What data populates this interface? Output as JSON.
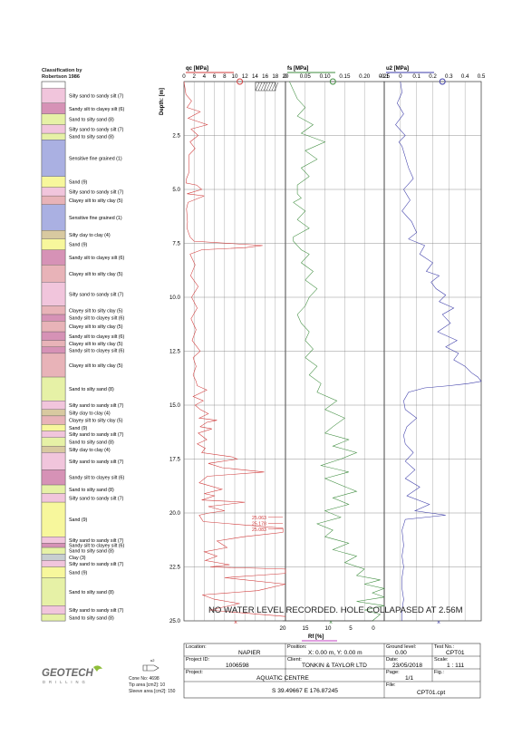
{
  "classification": {
    "title": "Classification by\nRobertson 1986",
    "depth_range": [
      0,
      25
    ],
    "layers": [
      {
        "top": 0.3,
        "bottom": 1.0,
        "label": "Silty sand to sandy silt (7)",
        "color": "#f1c5dc"
      },
      {
        "top": 1.0,
        "bottom": 1.5,
        "label": "Sandy silt to clayey silt (6)",
        "color": "#d692b6"
      },
      {
        "top": 1.5,
        "bottom": 2.0,
        "label": "Sand to silty sand (8)",
        "color": "#e6f1a6"
      },
      {
        "top": 2.0,
        "bottom": 2.4,
        "label": "Silty sand to sandy silt (7)",
        "color": "#f1c5dc"
      },
      {
        "top": 2.4,
        "bottom": 2.7,
        "label": "Sand to silty sand (8)",
        "color": "#e6f1a6"
      },
      {
        "top": 2.7,
        "bottom": 4.4,
        "label": "Sensitive fine grained (1)",
        "color": "#aab0e2"
      },
      {
        "top": 4.4,
        "bottom": 4.9,
        "label": "Sand (9)",
        "color": "#f7f79c"
      },
      {
        "top": 4.9,
        "bottom": 5.3,
        "label": "Silty sand to sandy silt (7)",
        "color": "#f1c5dc"
      },
      {
        "top": 5.3,
        "bottom": 5.7,
        "label": "Clayey silt to silty clay (5)",
        "color": "#e8b3b8"
      },
      {
        "top": 5.7,
        "bottom": 6.9,
        "label": "Sensitive fine grained (1)",
        "color": "#aab0e2"
      },
      {
        "top": 6.9,
        "bottom": 7.3,
        "label": "Silty clay to clay (4)",
        "color": "#d8c9a0"
      },
      {
        "top": 7.3,
        "bottom": 7.8,
        "label": "Sand (9)",
        "color": "#f7f79c"
      },
      {
        "top": 7.8,
        "bottom": 8.5,
        "label": "Sandy silt to clayey silt (6)",
        "color": "#d692b6"
      },
      {
        "top": 8.5,
        "bottom": 9.3,
        "label": "Clayey silt to silty clay (5)",
        "color": "#e8b3b8"
      },
      {
        "top": 9.3,
        "bottom": 10.4,
        "label": "Silty sand to sandy silt (7)",
        "color": "#f1c5dc"
      },
      {
        "top": 10.4,
        "bottom": 10.8,
        "label": "Clayey silt to silty clay (5)",
        "color": "#e8b3b8"
      },
      {
        "top": 10.8,
        "bottom": 11.1,
        "label": "Sandy silt to clayey silt (6)",
        "color": "#d692b6"
      },
      {
        "top": 11.1,
        "bottom": 11.6,
        "label": "Clayey silt to silty clay (5)",
        "color": "#e8b3b8"
      },
      {
        "top": 11.6,
        "bottom": 12.0,
        "label": "Sandy silt to clayey silt (6)",
        "color": "#d692b6"
      },
      {
        "top": 12.0,
        "bottom": 12.3,
        "label": "Clayey silt to silty clay (5)",
        "color": "#e8b3b8"
      },
      {
        "top": 12.3,
        "bottom": 12.6,
        "label": "Sandy silt to clayey silt (6)",
        "color": "#d692b6"
      },
      {
        "top": 12.6,
        "bottom": 13.7,
        "label": "Clayey silt to silty clay (5)",
        "color": "#e8b3b8"
      },
      {
        "top": 13.7,
        "bottom": 14.8,
        "label": "Sand to silty sand (8)",
        "color": "#e6f1a6"
      },
      {
        "top": 14.8,
        "bottom": 15.2,
        "label": "Silty sand to sandy silt (7)",
        "color": "#f1c5dc"
      },
      {
        "top": 15.2,
        "bottom": 15.5,
        "label": "Silty clay to clay (4)",
        "color": "#d8c9a0"
      },
      {
        "top": 15.5,
        "bottom": 15.9,
        "label": "Clayey silt to silty clay (5)",
        "color": "#e8b3b8"
      },
      {
        "top": 15.9,
        "bottom": 16.2,
        "label": "Sand (9)",
        "color": "#f7f79c"
      },
      {
        "top": 16.2,
        "bottom": 16.5,
        "label": "Silty sand to sandy silt (7)",
        "color": "#f1c5dc"
      },
      {
        "top": 16.5,
        "bottom": 16.9,
        "label": "Sand to silty sand (8)",
        "color": "#e6f1a6"
      },
      {
        "top": 16.9,
        "bottom": 17.2,
        "label": "Silty clay to clay (4)",
        "color": "#d8c9a0"
      },
      {
        "top": 17.2,
        "bottom": 18.0,
        "label": "Silty sand to sandy silt (7)",
        "color": "#f1c5dc"
      },
      {
        "top": 18.0,
        "bottom": 18.7,
        "label": "Sandy silt to clayey silt (6)",
        "color": "#d692b6"
      },
      {
        "top": 18.7,
        "bottom": 19.1,
        "label": "Sand to silty sand (8)",
        "color": "#e6f1a6"
      },
      {
        "top": 19.1,
        "bottom": 19.5,
        "label": "Silty sand to sandy silt (7)",
        "color": "#f1c5dc"
      },
      {
        "top": 19.5,
        "bottom": 21.1,
        "label": "Sand (9)",
        "color": "#f7f79c"
      },
      {
        "top": 21.1,
        "bottom": 21.4,
        "label": "Silty sand to sandy silt (7)",
        "color": "#f1c5dc"
      },
      {
        "top": 21.4,
        "bottom": 21.6,
        "label": "Sandy silt to clayey silt (6)",
        "color": "#d692b6"
      },
      {
        "top": 21.6,
        "bottom": 21.9,
        "label": "Sand to silty sand (8)",
        "color": "#e6f1a6"
      },
      {
        "top": 21.9,
        "bottom": 22.2,
        "label": "Clay (3)",
        "color": "#c7ced1"
      },
      {
        "top": 22.2,
        "bottom": 22.5,
        "label": "Silty sand to sandy silt (7)",
        "color": "#f1c5dc"
      },
      {
        "top": 22.5,
        "bottom": 23.0,
        "label": "Sand (9)",
        "color": "#f7f79c"
      },
      {
        "top": 23.0,
        "bottom": 24.3,
        "label": "Sand to silty sand (8)",
        "color": "#e6f1a6"
      },
      {
        "top": 24.3,
        "bottom": 24.7,
        "label": "Silty sand to sandy silt (7)",
        "color": "#f1c5dc"
      },
      {
        "top": 24.7,
        "bottom": 25.0,
        "label": "Sand to silty sand (8)",
        "color": "#e6f1a6"
      }
    ]
  },
  "chart_data": [
    {
      "type": "line",
      "xlabel": "qc [MPa]",
      "ylabel": "Depth: [m]",
      "xlim": [
        0,
        20
      ],
      "ylim": [
        25,
        0
      ],
      "xticks": [
        "0",
        "2",
        "4",
        "6",
        "8",
        "10",
        "12",
        "14",
        "16",
        "18",
        "20"
      ],
      "yticks": [
        "2.5",
        "5.0",
        "7.5",
        "10.0",
        "12.5",
        "15.0",
        "17.5",
        "20.0",
        "22.5",
        "25.0"
      ],
      "color": "#d23a3a",
      "off_scale_labels": [
        "25.063",
        "25.178",
        "25.083"
      ],
      "series": [
        {
          "x": [
            0,
            0.2,
            0.4,
            1.5,
            0.6,
            3.2,
            0.8,
            4.6,
            1.4,
            2.8,
            1.2,
            2.2,
            1.0,
            1.0,
            0.5,
            0.4,
            2.5,
            3.5,
            0.6,
            4.0,
            0.8,
            0.5,
            0.7,
            0.6,
            0.9,
            1.2,
            2.0,
            15.5,
            12.0,
            3.5,
            1.2,
            2.2,
            1.3,
            2.8,
            1.5,
            2.6,
            1.4,
            2.4,
            1.6,
            3.2,
            1.8,
            2.4,
            1.8,
            2.4,
            2.6,
            4.5,
            1.8,
            3.8,
            2.2,
            3.2,
            4.8,
            3.0,
            6.5,
            4.5,
            3.2,
            5.5,
            2.8,
            4.5,
            2.6,
            4.2,
            3.5,
            9.5,
            10.5,
            4.8,
            7.5,
            15.8,
            4.6,
            3.0,
            7.5,
            4.0,
            6.0,
            3.5,
            12.0,
            4.8,
            8.0,
            5.0,
            3.0,
            3.8,
            19.5,
            19.5,
            11.8,
            6.5,
            8.5,
            4.0,
            6.5,
            4.2,
            9.0,
            5.2,
            20.0,
            20.0,
            8.0,
            20.0,
            14.5,
            3.6,
            6.0,
            11.0,
            5.0,
            20.0
          ],
          "y": [
            0,
            0.3,
            0.6,
            0.9,
            1.2,
            1.4,
            1.7,
            2.0,
            2.2,
            2.5,
            2.8,
            3.1,
            3.4,
            4.2,
            4.5,
            4.7,
            4.8,
            5.0,
            5.2,
            5.3,
            5.6,
            5.9,
            6.5,
            6.8,
            7.0,
            7.2,
            7.4,
            7.6,
            7.7,
            7.8,
            8.0,
            8.5,
            9.0,
            9.5,
            10.0,
            10.5,
            11.0,
            11.5,
            12.0,
            12.5,
            12.8,
            13.2,
            13.6,
            13.9,
            14.1,
            14.3,
            14.6,
            14.8,
            15.0,
            15.2,
            15.4,
            15.6,
            15.7,
            15.8,
            16.0,
            16.1,
            16.3,
            16.6,
            16.8,
            17.0,
            17.2,
            17.4,
            17.5,
            17.7,
            17.9,
            18.1,
            18.3,
            18.6,
            18.9,
            19.1,
            19.2,
            19.4,
            19.5,
            19.7,
            19.9,
            20.0,
            20.1,
            20.4,
            20.7,
            20.9,
            21.1,
            21.3,
            21.6,
            21.8,
            22.0,
            22.2,
            22.4,
            22.5,
            22.6,
            22.8,
            23.0,
            23.3,
            23.6,
            23.8,
            24.0,
            24.2,
            24.5,
            24.8
          ]
        }
      ]
    },
    {
      "type": "line",
      "xlabel": "fs [MPa]",
      "xlim": [
        0,
        0.25
      ],
      "ylim": [
        25,
        0
      ],
      "xticks": [
        "0",
        "0.05",
        "0.10",
        "0.15",
        "0.20",
        "0.25"
      ],
      "color": "#3d8c3d",
      "series": [
        {
          "x": [
            0.01,
            0.02,
            0.03,
            0.05,
            0.03,
            0.07,
            0.04,
            0.1,
            0.05,
            0.08,
            0.04,
            0.06,
            0.03,
            0.03,
            0.04,
            0.02,
            0.05,
            0.03,
            0.06,
            0.02,
            0.02,
            0.03,
            0.04,
            0.06,
            0.04,
            0.07,
            0.05,
            0.08,
            0.06,
            0.05,
            0.03,
            0.04,
            0.06,
            0.05,
            0.07,
            0.05,
            0.08,
            0.06,
            0.09,
            0.08,
            0.13,
            0.1,
            0.15,
            0.12,
            0.1,
            0.16,
            0.12,
            0.18,
            0.14,
            0.09,
            0.16,
            0.1,
            0.14,
            0.18,
            0.12,
            0.16,
            0.1,
            0.14,
            0.08,
            0.12,
            0.1,
            0.16,
            0.12,
            0.18,
            0.15,
            0.2,
            0.18,
            0.24,
            0.2,
            0.25,
            0.22,
            0.25,
            0.18,
            0.25,
            0.2,
            0.24,
            0.22
          ],
          "y": [
            0,
            0.4,
            0.8,
            1.2,
            1.6,
            2.0,
            2.4,
            2.8,
            3.2,
            3.6,
            4.0,
            4.4,
            4.8,
            5.2,
            5.4,
            5.6,
            6.0,
            6.4,
            6.8,
            7.2,
            7.4,
            7.6,
            7.8,
            8.0,
            8.4,
            8.8,
            9.2,
            9.6,
            10.0,
            10.4,
            10.8,
            11.2,
            11.6,
            12.0,
            12.4,
            12.8,
            13.2,
            13.6,
            14.0,
            14.4,
            14.8,
            15.2,
            15.6,
            16.0,
            16.3,
            16.6,
            16.9,
            17.2,
            17.5,
            17.8,
            18.1,
            18.4,
            18.7,
            19.0,
            19.3,
            19.6,
            19.9,
            20.2,
            20.5,
            20.8,
            21.1,
            21.4,
            21.7,
            22.0,
            22.3,
            22.6,
            22.9,
            23.1,
            23.3,
            23.5,
            23.7,
            23.9,
            24.1,
            24.3,
            24.5,
            24.7,
            25.0
          ]
        }
      ]
    },
    {
      "type": "line",
      "xlabel": "u2 [MPa]",
      "xlim": [
        -0.1,
        0.5
      ],
      "ylim": [
        25,
        0
      ],
      "xticks": [
        "-0.1",
        "0",
        "0.1",
        "0.2",
        "0.3",
        "0.4",
        "0.5"
      ],
      "color": "#3a3aa8",
      "series": [
        {
          "x": [
            0,
            0.01,
            -0.02,
            0.02,
            -0.03,
            0.03,
            -0.01,
            0.01,
            0.03,
            0.05,
            0.08,
            0.02,
            0.06,
            0.01,
            0.07,
            0.1,
            0.05,
            0.15,
            0.12,
            0.2,
            0.16,
            0.24,
            0.19,
            0.22,
            0.28,
            0.24,
            0.33,
            0.26,
            0.31,
            0.23,
            0.35,
            0.28,
            0.36,
            0.33,
            0.4,
            0.44,
            0.48,
            0.5,
            0.42,
            0.3,
            0.15,
            0.05,
            0.02,
            0.03,
            0.1,
            0.04,
            0.02,
            0.03,
            0.08,
            0.03,
            0.09,
            0.03,
            0.12,
            0.04,
            0.18,
            0.09,
            0.28,
            0.03,
            0.01,
            0.02,
            0.01,
            0.02,
            0.01,
            0.01,
            0.02,
            0.01,
            0.01
          ],
          "y": [
            0,
            0.5,
            1.0,
            1.5,
            2.0,
            2.5,
            2.8,
            3.0,
            3.5,
            4.0,
            4.5,
            5.0,
            5.5,
            6.0,
            6.5,
            7.0,
            7.3,
            7.6,
            8.0,
            8.4,
            8.8,
            9.0,
            9.3,
            9.6,
            9.9,
            10.2,
            10.5,
            10.8,
            11.2,
            11.6,
            12.0,
            12.3,
            12.6,
            12.9,
            13.2,
            13.5,
            13.7,
            13.9,
            14.0,
            14.1,
            14.2,
            14.4,
            14.8,
            15.2,
            15.6,
            16.0,
            16.4,
            16.8,
            17.2,
            17.6,
            18.0,
            18.4,
            18.8,
            19.2,
            19.6,
            19.9,
            20.1,
            20.3,
            20.8,
            21.5,
            22.0,
            22.5,
            23.0,
            23.5,
            24.0,
            24.5,
            25.0
          ]
        }
      ]
    },
    {
      "type": "line",
      "xlabel": "Rf [%]",
      "xlim": [
        20,
        0
      ],
      "xticks": [
        "20",
        "15",
        "10",
        "5",
        "0"
      ],
      "color": "#c040c0",
      "series": [
        {
          "x": [],
          "y": []
        }
      ]
    }
  ],
  "annotation": "NO WATER LEVEL RECORDED. HOLE COLLAPASED AT 2.56M",
  "logo": {
    "name": "GEOTECH",
    "sub": "D R I L L I N G"
  },
  "cone_info": [
    "Cone No: 4698",
    "Tip area [cm2]: 10",
    "Sleeve area [cm2]: 150"
  ],
  "title_block": {
    "location_label": "Location:",
    "location": "NAPIER",
    "position_label": "Position:",
    "position": "X: 0.00 m, Y: 0.00 m",
    "ground_label": "Ground level:",
    "ground": "0.00",
    "test_label": "Test No.:",
    "test": "CPT01",
    "project_id_label": "Project ID:",
    "project_id": "1006598",
    "client_label": "Client:",
    "client": "TONKIN & TAYLOR LTD",
    "date_label": "Date:",
    "date": "23/05/2018",
    "scale_label": "Scale:",
    "scale": "1 : 111",
    "project_label": "Project:",
    "project": "AQUATIC CENTRE",
    "page_label": "Page:",
    "page": "1/1",
    "fig_label": "Fig.:",
    "fig": "",
    "coords": "S 39.49667 E 176.87245",
    "file_label": "File:",
    "file": "CPT01.cpt"
  }
}
